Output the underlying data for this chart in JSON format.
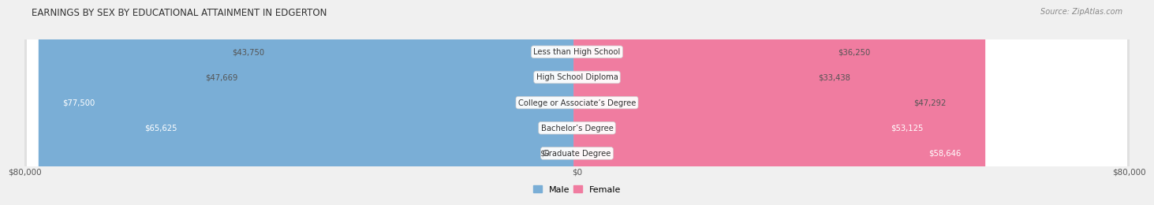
{
  "title": "EARNINGS BY SEX BY EDUCATIONAL ATTAINMENT IN EDGERTON",
  "source": "Source: ZipAtlas.com",
  "categories": [
    "Less than High School",
    "High School Diploma",
    "College or Associate’s Degree",
    "Bachelor’s Degree",
    "Graduate Degree"
  ],
  "male_values": [
    43750,
    47669,
    77500,
    65625,
    0
  ],
  "female_values": [
    36250,
    33438,
    47292,
    53125,
    58646
  ],
  "male_color": "#7aaed6",
  "male_color_grad": "#a8cce8",
  "female_color": "#f07ca0",
  "male_text_labels": [
    "$43,750",
    "$47,669",
    "$77,500",
    "$65,625",
    "$0"
  ],
  "female_text_labels": [
    "$36,250",
    "$33,438",
    "$47,292",
    "$53,125",
    "$58,646"
  ],
  "male_text_inside": [
    false,
    false,
    true,
    true,
    false
  ],
  "female_text_inside": [
    false,
    false,
    false,
    true,
    true
  ],
  "max_value": 80000,
  "bg_color": "#f0f0f0",
  "row_bg_color": "#ffffff",
  "row_gap_color": "#d8d8d8",
  "label_box_color": "#ffffff",
  "male_legend_color": "#7aaed6",
  "female_legend_color": "#f07ca0",
  "grad_male_value": 8000
}
